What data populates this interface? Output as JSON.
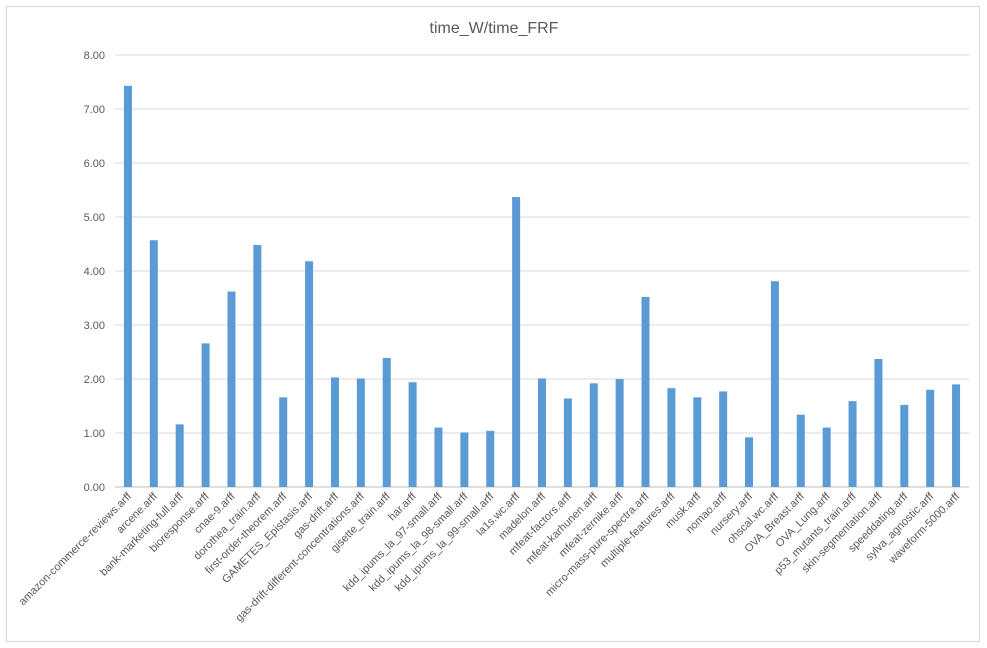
{
  "chart_data": {
    "type": "bar",
    "title": "time_W/time_FRF",
    "xlabel": "",
    "ylabel": "",
    "ylim": [
      0,
      8
    ],
    "yticks": [
      "0.00",
      "1.00",
      "2.00",
      "3.00",
      "4.00",
      "5.00",
      "6.00",
      "7.00",
      "8.00"
    ],
    "grid": true,
    "legend": "none",
    "bar_color": "#5b9bd5",
    "categories": [
      "amazon-commerce-reviews.arff",
      "arcene.arff",
      "bank-marketing-full.arff",
      "bioresponse.arff",
      "cnae-9.arff",
      "dorothea_train.arff",
      "first-order-theorem.arff",
      "GAMETES_Epistasis.arff",
      "gas-drift.arff",
      "gas-drift-different-concentrations.arff",
      "gisette_train.arff",
      "har.arff",
      "kdd_ipums_la_97-small.arff",
      "kdd_ipums_la_98-small.arff",
      "kdd_ipums_la_99-small.arff",
      "la1s.wc.arff",
      "madelon.arff",
      "mfeat-factors.arff",
      "mfeat-karhunen.arff",
      "mfeat-zernike.arff",
      "micro-mass-pure-spectra.arff",
      "multiple-features.arff",
      "musk.arff",
      "nomao.arff",
      "nursery.arff",
      "ohscal.wc.arff",
      "OVA_Breast.arff",
      "OVA_Lung.arff",
      "p53_mutants_train.arff",
      "skin-segmentation.arff",
      "speeddating.arff",
      "sylva_agnostic.arff",
      "waveform-5000.arff"
    ],
    "values": [
      7.43,
      4.57,
      1.16,
      2.66,
      3.62,
      4.48,
      1.66,
      4.18,
      2.03,
      2.01,
      2.39,
      1.94,
      1.1,
      1.01,
      1.04,
      5.37,
      2.01,
      1.64,
      1.92,
      2.0,
      3.52,
      1.83,
      1.66,
      1.77,
      0.92,
      3.81,
      1.34,
      1.1,
      1.59,
      2.37,
      1.52,
      1.8,
      1.9
    ]
  }
}
